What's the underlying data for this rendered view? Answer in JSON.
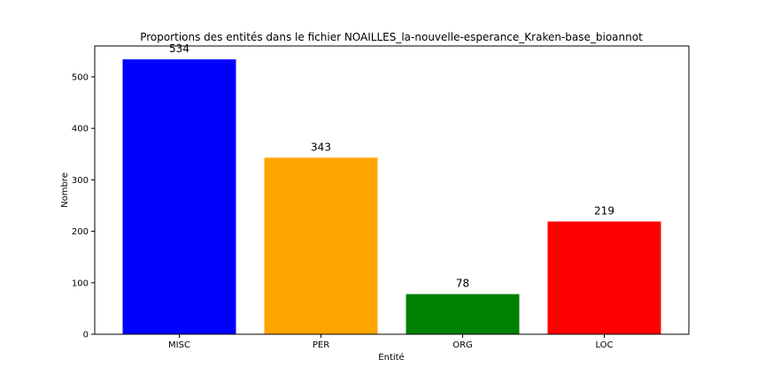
{
  "chart_data": {
    "type": "bar",
    "title": "Proportions des entités dans le fichier NOAILLES_la-nouvelle-esperance_Kraken-base_bioannot",
    "xlabel": "Entité",
    "ylabel": "Nombre",
    "categories": [
      "MISC",
      "PER",
      "ORG",
      "LOC"
    ],
    "values": [
      534,
      343,
      78,
      219
    ],
    "value_labels": [
      "534",
      "343",
      "78",
      "219"
    ],
    "colors": [
      "#0000ff",
      "#ffa500",
      "#008000",
      "#ff0000"
    ],
    "ylim": [
      0,
      560
    ],
    "yticks": [
      0,
      100,
      200,
      300,
      400,
      500
    ],
    "grid": false,
    "legend": false
  }
}
